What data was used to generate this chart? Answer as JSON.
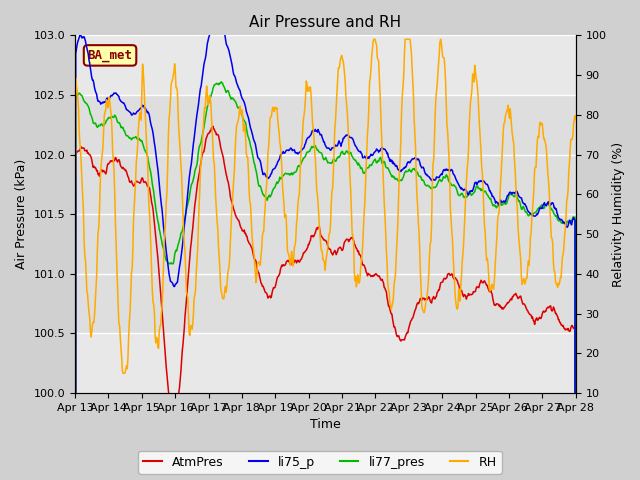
{
  "title": "Air Pressure and RH",
  "xlabel": "Time",
  "ylabel_left": "Air Pressure (kPa)",
  "ylabel_right": "Relativity Humidity (%)",
  "ylim_left": [
    100.0,
    103.0
  ],
  "ylim_right": [
    10,
    100
  ],
  "yticks_left": [
    100.0,
    100.5,
    101.0,
    101.5,
    102.0,
    102.5,
    103.0
  ],
  "yticks_right": [
    10,
    20,
    30,
    40,
    50,
    60,
    70,
    80,
    90,
    100
  ],
  "xtick_labels": [
    "Apr 13",
    "Apr 14",
    "Apr 15",
    "Apr 16",
    "Apr 17",
    "Apr 18",
    "Apr 19",
    "Apr 20",
    "Apr 21",
    "Apr 22",
    "Apr 23",
    "Apr 24",
    "Apr 25",
    "Apr 26",
    "Apr 27",
    "Apr 28"
  ],
  "legend_labels": [
    "AtmPres",
    "li75_p",
    "li77_pres",
    "RH"
  ],
  "colors": [
    "#dd0000",
    "#0000ee",
    "#00bb00",
    "#ffaa00"
  ],
  "annotation_text": "BA_met",
  "annotation_fg": "#8b0000",
  "annotation_bg": "#ffffaa",
  "fig_bg": "#d0d0d0",
  "plot_bg": "#e8e8e8",
  "band_color": "#d0d0d0",
  "grid_color": "#ffffff"
}
